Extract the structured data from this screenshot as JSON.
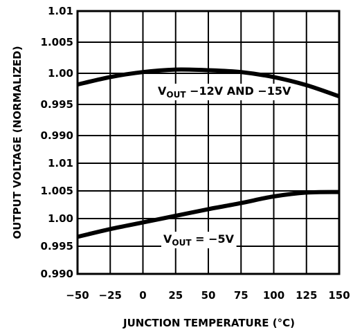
{
  "chart_data": {
    "type": "line",
    "xlabel": "JUNCTION TEMPERATURE (°C)",
    "ylabel": "OUTPUT VOLTAGE (NORMALIZED)",
    "x_ticks": [
      "−50",
      "−25",
      "0",
      "25",
      "50",
      "75",
      "100",
      "125",
      "150"
    ],
    "xlim": [
      -50,
      150
    ],
    "grid": true,
    "panels": [
      {
        "y_ticks": [
          "1.01",
          "1.005",
          "1.00",
          "0.995",
          "0.990"
        ],
        "ylim": [
          0.99,
          1.01
        ],
        "annotation": {
          "prefix": "V",
          "sub": "OUT",
          "suffix": " −12V AND −15V"
        },
        "x": [
          -50,
          -25,
          0,
          25,
          50,
          75,
          100,
          125,
          150
        ],
        "y": [
          0.9982,
          0.9994,
          1.0002,
          1.0006,
          1.0005,
          1.0002,
          0.9994,
          0.9981,
          0.9963
        ]
      },
      {
        "y_ticks": [
          "1.01",
          "1.005",
          "1.00",
          "0.995",
          "0.990"
        ],
        "ylim": [
          0.99,
          1.01
        ],
        "annotation": {
          "prefix": "V",
          "sub": "OUT",
          "suffix": " = −5V"
        },
        "x": [
          -50,
          -25,
          0,
          25,
          50,
          75,
          100,
          125,
          150
        ],
        "y": [
          0.9967,
          0.9981,
          0.9993,
          1.0005,
          1.0017,
          1.0028,
          1.004,
          1.0047,
          1.0048
        ]
      }
    ]
  }
}
